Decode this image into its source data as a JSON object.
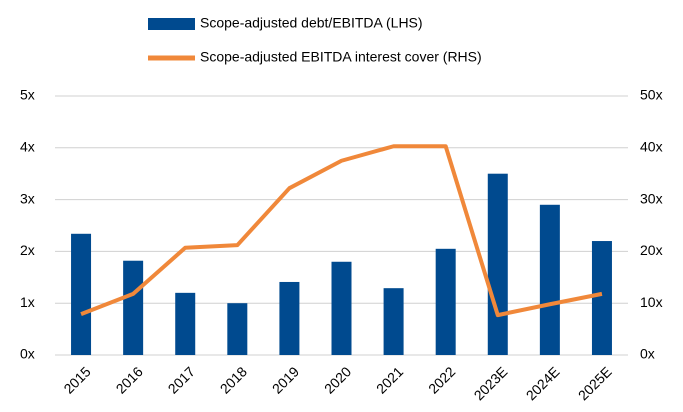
{
  "chart_data": {
    "type": "bar_line",
    "categories": [
      "2015",
      "2016",
      "2017",
      "2018",
      "2019",
      "2020",
      "2021",
      "2022",
      "2023E",
      "2024E",
      "2025E"
    ],
    "series": [
      {
        "name": "Scope-adjusted debt/EBITDA (LHS)",
        "type": "bar",
        "color": "#004a8f",
        "values": [
          2.34,
          1.82,
          1.2,
          1.0,
          1.41,
          1.8,
          1.29,
          2.05,
          3.5,
          2.9,
          2.2
        ]
      },
      {
        "name": "Scope-adjusted EBITDA interest cover (RHS)",
        "type": "line",
        "axis": "y2",
        "color": "#f0883a",
        "values": [
          7.9,
          11.8,
          20.7,
          21.2,
          32.2,
          37.5,
          40.3,
          40.3,
          7.7,
          9.8,
          11.8
        ]
      }
    ],
    "ylim": [
      0,
      5
    ],
    "yticks": [
      {
        "value": 0,
        "label": "0x"
      },
      {
        "value": 1,
        "label": "1x"
      },
      {
        "value": 2,
        "label": "2x"
      },
      {
        "value": 3,
        "label": "3x"
      },
      {
        "value": 4,
        "label": "4x"
      },
      {
        "value": 5,
        "label": "5x"
      }
    ],
    "y2lim": [
      0,
      50
    ],
    "y2ticks": [
      {
        "value": 0,
        "label": "0x"
      },
      {
        "value": 10,
        "label": "10x"
      },
      {
        "value": 20,
        "label": "20x"
      },
      {
        "value": 30,
        "label": "30x"
      },
      {
        "value": 40,
        "label": "40x"
      },
      {
        "value": 50,
        "label": "50x"
      }
    ],
    "grid": true,
    "legend": "top"
  }
}
